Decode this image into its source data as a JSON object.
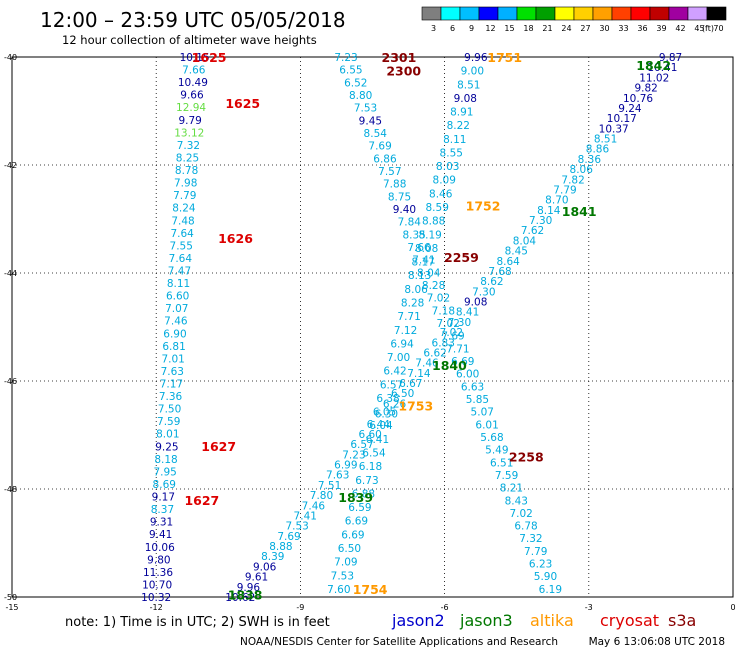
{
  "header": {
    "title": "12:00 – 23:59 UTC 05/05/2018",
    "subtitle": "12 hour collection of altimeter wave heights"
  },
  "colorbar": {
    "labels": [
      "3",
      "6",
      "9",
      "12",
      "15",
      "18",
      "21",
      "24",
      "27",
      "30",
      "33",
      "36",
      "39",
      "42",
      "45",
      "70"
    ],
    "unit": "(ft)",
    "colors": [
      "#7f7f7f",
      "#00ffff",
      "#00bfff",
      "#0000ff",
      "#00b0ff",
      "#00e000",
      "#00a000",
      "#ffff00",
      "#ffd000",
      "#ffa000",
      "#ff4000",
      "#ff0000",
      "#c00000",
      "#a000a0",
      "#d0a0ff",
      "#000000"
    ]
  },
  "satellite_colors": {
    "jason2": "#0000cc",
    "jason3": "#007700",
    "altika": "#ff9900",
    "cryosat": "#dd0000",
    "s3a": "#880000",
    "cyan": "#00aadd",
    "blue": "#000099",
    "ltgreen": "#66dd44"
  },
  "footer": {
    "note": "note: 1) Time is in UTC; 2) SWH is in feet",
    "legend": [
      {
        "name": "jason2",
        "color": "#0000cc"
      },
      {
        "name": "jason3",
        "color": "#007700"
      },
      {
        "name": "altika",
        "color": "#ff9900"
      },
      {
        "name": "cryosat",
        "color": "#dd0000"
      },
      {
        "name": "s3a",
        "color": "#880000"
      }
    ],
    "credit": "NOAA/NESDIS Center for Satellite Applications and Research",
    "timestamp": "May  6 13:06:08 UTC 2018"
  },
  "chart_data": {
    "type": "scatter",
    "xlim": [
      -15,
      0
    ],
    "ylim": [
      -50,
      -40
    ],
    "xticks": [
      "-15",
      "-12",
      "-9",
      "-6",
      "-3",
      "0"
    ],
    "yticks": [
      "-40",
      "-42",
      "-44",
      "-46",
      "-48",
      "-50"
    ],
    "grid": true,
    "time_labels": [
      {
        "text": "1625",
        "x": -10.9,
        "y": -40.0,
        "color": "#dd0000"
      },
      {
        "text": "1625",
        "x": -10.2,
        "y": -40.85,
        "color": "#dd0000"
      },
      {
        "text": "1626",
        "x": -10.35,
        "y": -43.35,
        "color": "#dd0000"
      },
      {
        "text": "1627",
        "x": -10.7,
        "y": -47.2,
        "color": "#dd0000"
      },
      {
        "text": "1627",
        "x": -11.05,
        "y": -48.2,
        "color": "#dd0000"
      },
      {
        "text": "1838",
        "x": -10.15,
        "y": -49.95,
        "color": "#007700"
      },
      {
        "text": "1839",
        "x": -7.85,
        "y": -48.15,
        "color": "#007700"
      },
      {
        "text": "1840",
        "x": -5.9,
        "y": -45.7,
        "color": "#007700"
      },
      {
        "text": "1841",
        "x": -3.2,
        "y": -42.85,
        "color": "#007700"
      },
      {
        "text": "1842",
        "x": -1.65,
        "y": -40.15,
        "color": "#007700"
      },
      {
        "text": "1751",
        "x": -4.75,
        "y": -40.0,
        "color": "#ff9900"
      },
      {
        "text": "1752",
        "x": -5.2,
        "y": -42.75,
        "color": "#ff9900"
      },
      {
        "text": "1753",
        "x": -6.6,
        "y": -46.45,
        "color": "#ff9900"
      },
      {
        "text": "1754",
        "x": -7.55,
        "y": -49.85,
        "color": "#ff9900"
      },
      {
        "text": "2301",
        "x": -6.95,
        "y": -40.0,
        "color": "#880000"
      },
      {
        "text": "2300",
        "x": -6.85,
        "y": -40.25,
        "color": "#880000"
      },
      {
        "text": "2259",
        "x": -5.65,
        "y": -43.7,
        "color": "#880000"
      },
      {
        "text": "2258",
        "x": -4.3,
        "y": -47.4,
        "color": "#880000"
      }
    ],
    "series": [
      {
        "name": "cryosat track (1625-1627)",
        "x0": -11.2,
        "x1": -12.0,
        "y0": -40.0,
        "y1": -50.0,
        "values": [
          [
            "10.15",
            "blue"
          ],
          [
            "7.66",
            "cyan"
          ],
          [
            "10.49",
            "blue"
          ],
          [
            "9.66",
            "blue"
          ],
          [
            "12.94",
            "ltgreen"
          ],
          [
            "9.79",
            "blue"
          ],
          [
            "13.12",
            "ltgreen"
          ],
          [
            "7.32",
            "cyan"
          ],
          [
            "8.25",
            "cyan"
          ],
          [
            "8.78",
            "cyan"
          ],
          [
            "7.98",
            "cyan"
          ],
          [
            "7.79",
            "cyan"
          ],
          [
            "8.24",
            "cyan"
          ],
          [
            "7.48",
            "cyan"
          ],
          [
            "7.64",
            "cyan"
          ],
          [
            "7.55",
            "cyan"
          ],
          [
            "7.64",
            "cyan"
          ],
          [
            "7.47",
            "cyan"
          ],
          [
            "8.11",
            "cyan"
          ],
          [
            "6.60",
            "cyan"
          ],
          [
            "7.07",
            "cyan"
          ],
          [
            "7.46",
            "cyan"
          ],
          [
            "6.90",
            "cyan"
          ],
          [
            "6.81",
            "cyan"
          ],
          [
            "7.01",
            "cyan"
          ],
          [
            "7.63",
            "cyan"
          ],
          [
            "7.17",
            "cyan"
          ],
          [
            "7.36",
            "cyan"
          ],
          [
            "7.50",
            "cyan"
          ],
          [
            "7.59",
            "cyan"
          ],
          [
            "8.01",
            "cyan"
          ],
          [
            "9.25",
            "blue"
          ],
          [
            "8.18",
            "cyan"
          ],
          [
            "7.95",
            "cyan"
          ],
          [
            "8.69",
            "cyan"
          ],
          [
            "9.17",
            "blue"
          ],
          [
            "8.37",
            "cyan"
          ],
          [
            "9.31",
            "blue"
          ],
          [
            "9.41",
            "blue"
          ],
          [
            "10.06",
            "blue"
          ],
          [
            "9.80",
            "blue"
          ],
          [
            "11.36",
            "blue"
          ],
          [
            "10.70",
            "blue"
          ],
          [
            "10.32",
            "blue"
          ]
        ]
      },
      {
        "name": "jason3 track (1838-1842)",
        "x0": -10.25,
        "x1": -1.3,
        "y0": -50.0,
        "y1": -40.0,
        "values": [
          [
            "10.62",
            "blue"
          ],
          [
            "9.96",
            "blue"
          ],
          [
            "9.61",
            "blue"
          ],
          [
            "9.06",
            "blue"
          ],
          [
            "8.39",
            "cyan"
          ],
          [
            "8.88",
            "cyan"
          ],
          [
            "7.69",
            "cyan"
          ],
          [
            "7.53",
            "cyan"
          ],
          [
            "7.41",
            "cyan"
          ],
          [
            "7.46",
            "cyan"
          ],
          [
            "7.80",
            "cyan"
          ],
          [
            "7.51",
            "cyan"
          ],
          [
            "7.63",
            "cyan"
          ],
          [
            "6.99",
            "cyan"
          ],
          [
            "7.23",
            "cyan"
          ],
          [
            "6.57",
            "cyan"
          ],
          [
            "6.60",
            "cyan"
          ],
          [
            "6.44",
            "cyan"
          ],
          [
            "6.30",
            "cyan"
          ],
          [
            "6.26",
            "cyan"
          ],
          [
            "6.50",
            "cyan"
          ],
          [
            "6.67",
            "cyan"
          ],
          [
            "7.14",
            "cyan"
          ],
          [
            "7.46",
            "cyan"
          ],
          [
            "6.62",
            "cyan"
          ],
          [
            "6.83",
            "cyan"
          ],
          [
            "7.02",
            "cyan"
          ],
          [
            "7.30",
            "cyan"
          ],
          [
            "8.41",
            "cyan"
          ],
          [
            "9.08",
            "blue"
          ],
          [
            "7.30",
            "cyan"
          ],
          [
            "8.62",
            "cyan"
          ],
          [
            "7.68",
            "cyan"
          ],
          [
            "8.64",
            "cyan"
          ],
          [
            "8.45",
            "cyan"
          ],
          [
            "8.04",
            "cyan"
          ],
          [
            "7.62",
            "cyan"
          ],
          [
            "7.30",
            "cyan"
          ],
          [
            "8.14",
            "cyan"
          ],
          [
            "8.70",
            "cyan"
          ],
          [
            "7.79",
            "cyan"
          ],
          [
            "7.82",
            "cyan"
          ],
          [
            "8.06",
            "cyan"
          ],
          [
            "8.36",
            "cyan"
          ],
          [
            "8.86",
            "cyan"
          ],
          [
            "8.51",
            "cyan"
          ],
          [
            "10.37",
            "blue"
          ],
          [
            "10.17",
            "blue"
          ],
          [
            "9.24",
            "blue"
          ],
          [
            "10.76",
            "blue"
          ],
          [
            "9.82",
            "blue"
          ],
          [
            "11.02",
            "blue"
          ],
          [
            "10.41",
            "blue"
          ],
          [
            "9.87",
            "blue"
          ]
        ]
      },
      {
        "name": "altika track (1751-1754)",
        "x0": -5.35,
        "x1": -8.2,
        "y0": -40.0,
        "y1": -49.85,
        "values": [
          [
            "9.96",
            "blue"
          ],
          [
            "9.00",
            "cyan"
          ],
          [
            "8.51",
            "cyan"
          ],
          [
            "9.08",
            "blue"
          ],
          [
            "8.91",
            "cyan"
          ],
          [
            "8.22",
            "cyan"
          ],
          [
            "8.11",
            "cyan"
          ],
          [
            "8.55",
            "cyan"
          ],
          [
            "8.03",
            "cyan"
          ],
          [
            "8.09",
            "cyan"
          ],
          [
            "8.46",
            "cyan"
          ],
          [
            "8.59",
            "cyan"
          ],
          [
            "8.88",
            "cyan"
          ],
          [
            "8.19",
            "cyan"
          ],
          [
            "8.08",
            "cyan"
          ],
          [
            "8.17",
            "cyan"
          ],
          [
            "8.13",
            "cyan"
          ],
          [
            "8.06",
            "cyan"
          ],
          [
            "8.28",
            "cyan"
          ],
          [
            "7.71",
            "cyan"
          ],
          [
            "7.12",
            "cyan"
          ],
          [
            "6.94",
            "cyan"
          ],
          [
            "7.00",
            "cyan"
          ],
          [
            "6.42",
            "cyan"
          ],
          [
            "6.57",
            "cyan"
          ],
          [
            "6.38",
            "cyan"
          ],
          [
            "6.05",
            "cyan"
          ],
          [
            "6.04",
            "cyan"
          ],
          [
            "6.41",
            "cyan"
          ],
          [
            "6.54",
            "cyan"
          ],
          [
            "6.18",
            "cyan"
          ],
          [
            "6.73",
            "cyan"
          ],
          [
            "6.88",
            "cyan"
          ],
          [
            "6.59",
            "cyan"
          ],
          [
            "6.69",
            "cyan"
          ],
          [
            "6.69",
            "cyan"
          ],
          [
            "6.50",
            "cyan"
          ],
          [
            "7.09",
            "cyan"
          ],
          [
            "7.53",
            "cyan"
          ],
          [
            "7.60",
            "cyan"
          ]
        ]
      },
      {
        "name": "s3a track (2258-2301)",
        "x0": -8.05,
        "x1": -3.8,
        "y0": -40.0,
        "y1": -49.85,
        "values": [
          [
            "7.23",
            "cyan"
          ],
          [
            "6.55",
            "cyan"
          ],
          [
            "6.52",
            "cyan"
          ],
          [
            "8.80",
            "cyan"
          ],
          [
            "7.53",
            "cyan"
          ],
          [
            "9.45",
            "blue"
          ],
          [
            "8.54",
            "cyan"
          ],
          [
            "7.69",
            "cyan"
          ],
          [
            "6.86",
            "cyan"
          ],
          [
            "7.57",
            "cyan"
          ],
          [
            "7.88",
            "cyan"
          ],
          [
            "8.75",
            "cyan"
          ],
          [
            "9.40",
            "blue"
          ],
          [
            "7.84",
            "cyan"
          ],
          [
            "8.35",
            "cyan"
          ],
          [
            "7.66",
            "cyan"
          ],
          [
            "7.41",
            "cyan"
          ],
          [
            "8.04",
            "cyan"
          ],
          [
            "8.28",
            "cyan"
          ],
          [
            "7.02",
            "cyan"
          ],
          [
            "7.18",
            "cyan"
          ],
          [
            "7.02",
            "cyan"
          ],
          [
            "7.69",
            "cyan"
          ],
          [
            "7.71",
            "cyan"
          ],
          [
            "6.69",
            "cyan"
          ],
          [
            "6.00",
            "cyan"
          ],
          [
            "6.63",
            "cyan"
          ],
          [
            "5.85",
            "cyan"
          ],
          [
            "5.07",
            "cyan"
          ],
          [
            "6.01",
            "cyan"
          ],
          [
            "5.68",
            "cyan"
          ],
          [
            "5.49",
            "cyan"
          ],
          [
            "6.51",
            "cyan"
          ],
          [
            "7.59",
            "cyan"
          ],
          [
            "8.21",
            "cyan"
          ],
          [
            "8.43",
            "cyan"
          ],
          [
            "7.02",
            "cyan"
          ],
          [
            "6.78",
            "cyan"
          ],
          [
            "7.32",
            "cyan"
          ],
          [
            "7.79",
            "cyan"
          ],
          [
            "6.23",
            "cyan"
          ],
          [
            "5.90",
            "cyan"
          ],
          [
            "6.19",
            "cyan"
          ]
        ]
      }
    ]
  }
}
